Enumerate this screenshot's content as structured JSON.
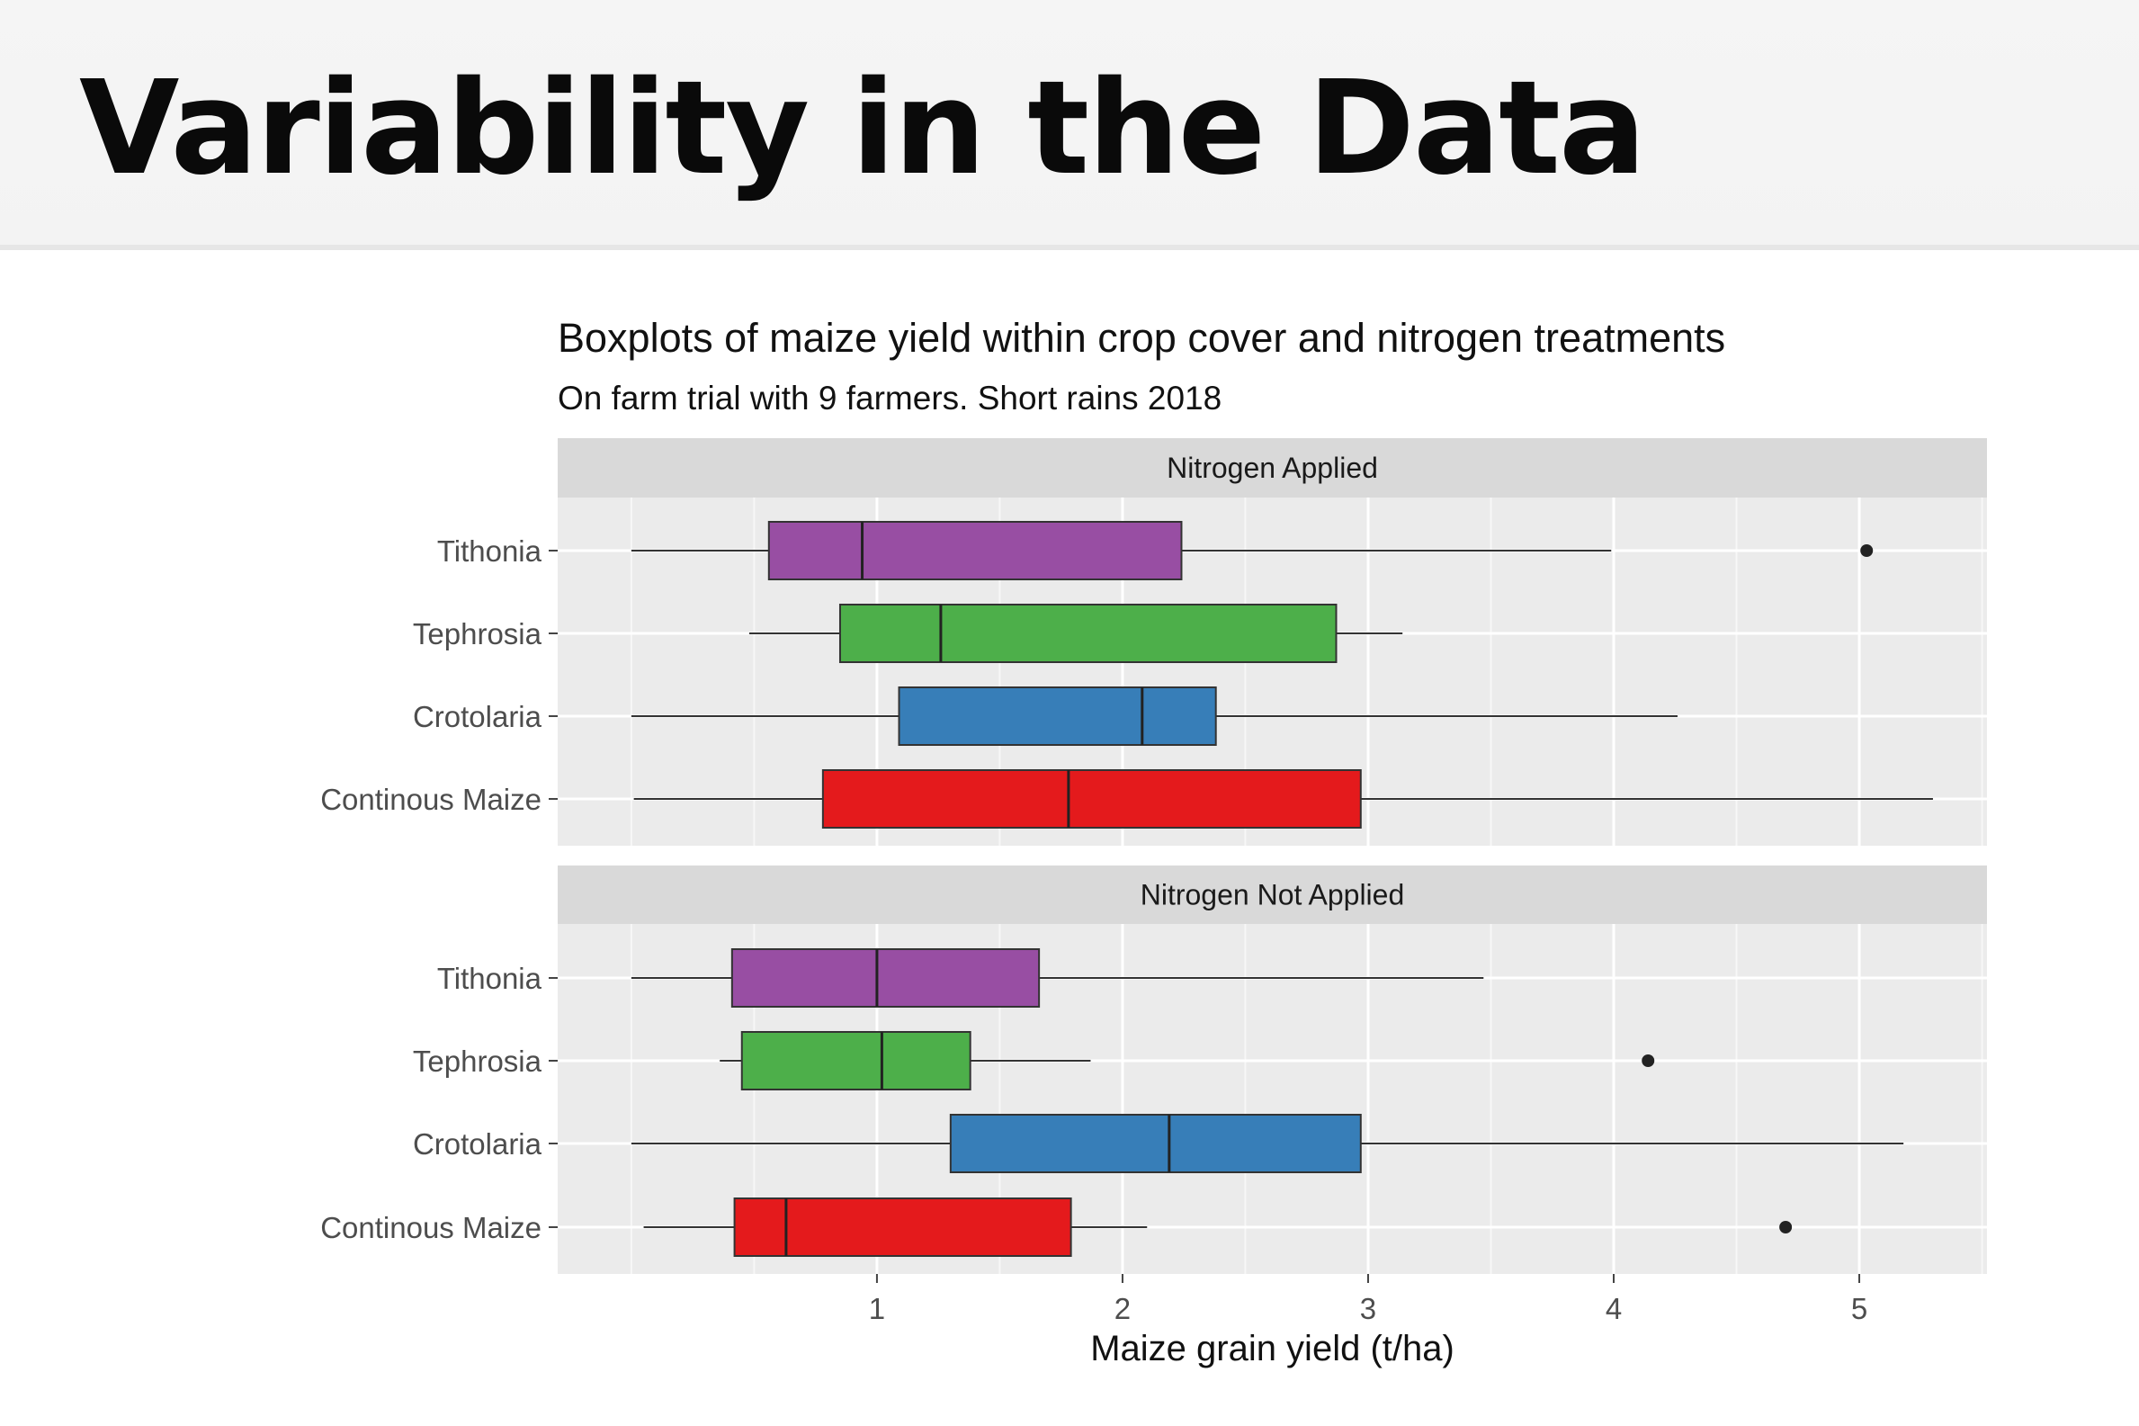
{
  "slide": {
    "title": "Variability in the Data"
  },
  "chart_data": {
    "type": "boxplot",
    "title": "Boxplots of maize yield within crop cover and nitrogen treatments",
    "subtitle": "On farm trial with 9 farmers. Short rains 2018",
    "xlabel": "Maize grain yield (t/ha)",
    "ylabel": "",
    "xlim": [
      -0.3,
      5.52
    ],
    "x_ticks": [
      1,
      2,
      3,
      4,
      5
    ],
    "grid": true,
    "orientation": "horizontal",
    "categories": [
      "Tithonia",
      "Tephrosia",
      "Crotolaria",
      "Continous Maize"
    ],
    "colors": {
      "Tithonia": "#984ea3",
      "Tephrosia": "#4daf4a",
      "Crotolaria": "#377eb8",
      "Continous Maize": "#e41a1c"
    },
    "panels": [
      {
        "label": "Nitrogen Applied",
        "boxes": [
          {
            "category": "Tithonia",
            "whisker_low": 0.0,
            "q1": 0.56,
            "median": 0.94,
            "q3": 2.24,
            "whisker_high": 3.99,
            "outliers": [
              5.03
            ]
          },
          {
            "category": "Tephrosia",
            "whisker_low": 0.48,
            "q1": 0.85,
            "median": 1.26,
            "q3": 2.87,
            "whisker_high": 3.14,
            "outliers": []
          },
          {
            "category": "Crotolaria",
            "whisker_low": 0.0,
            "q1": 1.09,
            "median": 2.08,
            "q3": 2.38,
            "whisker_high": 4.26,
            "outliers": []
          },
          {
            "category": "Continous Maize",
            "whisker_low": 0.01,
            "q1": 0.78,
            "median": 1.78,
            "q3": 2.97,
            "whisker_high": 5.3,
            "outliers": []
          }
        ]
      },
      {
        "label": "Nitrogen Not Applied",
        "boxes": [
          {
            "category": "Tithonia",
            "whisker_low": 0.0,
            "q1": 0.41,
            "median": 1.0,
            "q3": 1.66,
            "whisker_high": 3.47,
            "outliers": []
          },
          {
            "category": "Tephrosia",
            "whisker_low": 0.36,
            "q1": 0.45,
            "median": 1.02,
            "q3": 1.38,
            "whisker_high": 1.87,
            "outliers": [
              4.14
            ]
          },
          {
            "category": "Crotolaria",
            "whisker_low": 0.0,
            "q1": 1.3,
            "median": 2.19,
            "q3": 2.97,
            "whisker_high": 5.18,
            "outliers": []
          },
          {
            "category": "Continous Maize",
            "whisker_low": 0.05,
            "q1": 0.42,
            "median": 0.63,
            "q3": 1.79,
            "whisker_high": 2.1,
            "outliers": [
              4.7
            ]
          }
        ]
      }
    ]
  }
}
